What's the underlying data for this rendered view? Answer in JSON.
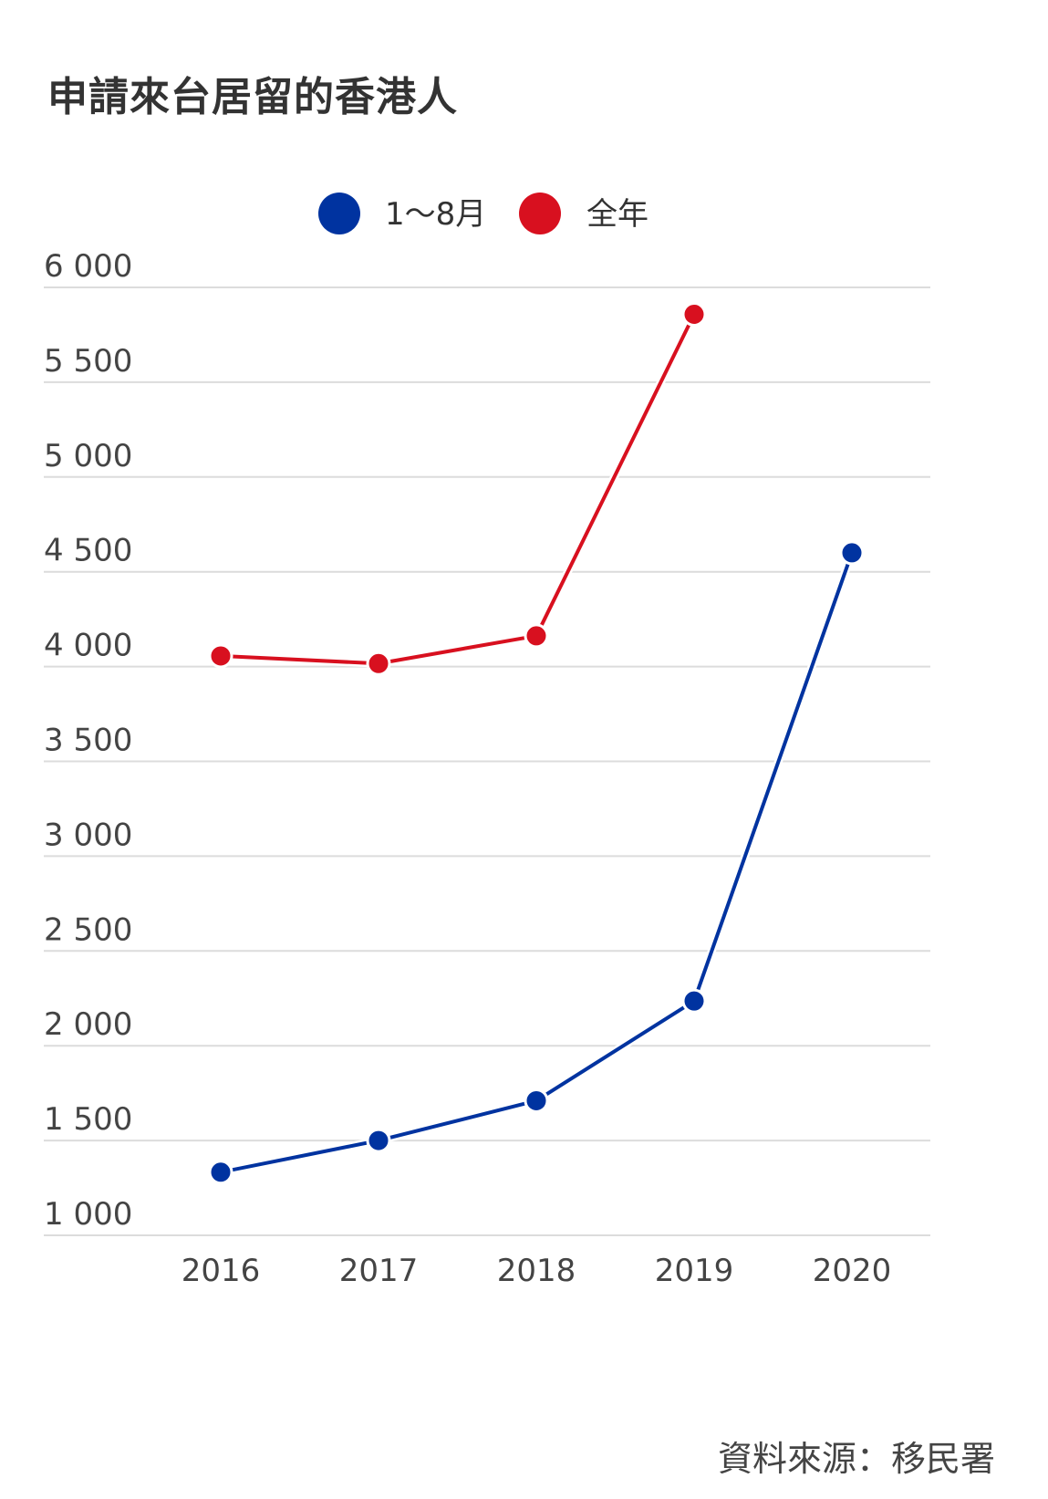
{
  "chart_data": {
    "type": "line",
    "title": "申請來台居留的香港人",
    "categories": [
      "2016",
      "2017",
      "2018",
      "2019",
      "2020"
    ],
    "series": [
      {
        "name": "1～8月",
        "color": "#0033a0",
        "values": [
          1333,
          1500,
          1710,
          2236,
          4600
        ]
      },
      {
        "name": "全年",
        "color": "#d8101f",
        "values": [
          4056,
          4016,
          4162,
          5858,
          null
        ]
      }
    ],
    "yticks": [
      1000,
      1500,
      2000,
      2500,
      3000,
      3500,
      4000,
      4500,
      5000,
      5500,
      6000
    ],
    "ytick_labels": [
      "1 000",
      "1 500",
      "2 000",
      "2 500",
      "3 000",
      "3 500",
      "4 000",
      "4 500",
      "5 000",
      "5 500",
      "6 000"
    ],
    "ylim": [
      1000,
      6000
    ],
    "grid": true,
    "legend_position": "top-center",
    "source": "資料來源：移民署"
  }
}
